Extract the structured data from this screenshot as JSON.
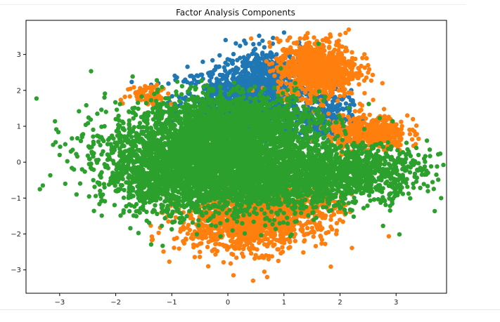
{
  "chart_data": {
    "type": "scatter",
    "title": "Factor Analysis Components",
    "xlabel": "",
    "ylabel": "",
    "xlim": [
      -3.6,
      3.9
    ],
    "ylim": [
      -3.65,
      3.95
    ],
    "xticks": [
      -3,
      -2,
      -1,
      0,
      1,
      2,
      3
    ],
    "yticks": [
      -3,
      -2,
      -1,
      0,
      1,
      2,
      3
    ],
    "xtick_labels": [
      "−3",
      "−2",
      "−1",
      "0",
      "1",
      "2",
      "3"
    ],
    "ytick_labels": [
      "−3",
      "−2",
      "−1",
      "0",
      "1",
      "2",
      "3"
    ],
    "grid": false,
    "legend": "none",
    "series": [
      {
        "color": "#1f77b4",
        "clusters": [
          {
            "cx": 0.2,
            "cy": 1.6,
            "sx": 0.55,
            "sy": 0.55,
            "n": 900
          },
          {
            "cx": 0.7,
            "cy": 2.3,
            "sx": 0.35,
            "sy": 0.45,
            "n": 450
          },
          {
            "cx": 1.7,
            "cy": 1.3,
            "sx": 0.25,
            "sy": 0.35,
            "n": 250
          }
        ],
        "points": [
          [
            -0.6,
            2.3
          ],
          [
            -0.3,
            2.5
          ],
          [
            0.3,
            2.85
          ],
          [
            0.5,
            3.0
          ],
          [
            0.65,
            3.2
          ],
          [
            0.8,
            3.3
          ],
          [
            1.5,
            1.5
          ],
          [
            1.7,
            1.0
          ],
          [
            2.1,
            1.2
          ],
          [
            2.0,
            0.9
          ]
        ]
      },
      {
        "color": "#ff7f0e",
        "clusters": [
          {
            "cx": 1.6,
            "cy": 2.6,
            "sx": 0.35,
            "sy": 0.4,
            "n": 900
          },
          {
            "cx": 2.5,
            "cy": 0.8,
            "sx": 0.35,
            "sy": 0.25,
            "n": 450
          },
          {
            "cx": 0.3,
            "cy": -1.7,
            "sx": 0.6,
            "sy": 0.4,
            "n": 900
          },
          {
            "cx": 1.0,
            "cy": -1.3,
            "sx": 0.5,
            "sy": 0.3,
            "n": 450
          },
          {
            "cx": -1.4,
            "cy": 1.9,
            "sx": 0.2,
            "sy": 0.15,
            "n": 80
          }
        ],
        "points": [
          [
            1.3,
            3.1
          ],
          [
            1.4,
            3.3
          ],
          [
            2.0,
            3.55
          ],
          [
            2.1,
            3.6
          ],
          [
            2.4,
            2.9
          ],
          [
            2.5,
            2.7
          ],
          [
            2.9,
            1.2
          ],
          [
            3.2,
            1.3
          ],
          [
            3.3,
            1.2
          ],
          [
            -0.35,
            -2.9
          ],
          [
            0.1,
            -3.15
          ],
          [
            0.45,
            -3.3
          ],
          [
            0.7,
            -3.2
          ],
          [
            0.65,
            -3.05
          ],
          [
            0.9,
            -2.75
          ],
          [
            -0.8,
            -2.2
          ],
          [
            -0.5,
            -2.5
          ],
          [
            1.4,
            -2.0
          ]
        ]
      },
      {
        "color": "#2ca02c",
        "clusters": [
          {
            "cx": -0.2,
            "cy": 0.3,
            "sx": 0.95,
            "sy": 0.7,
            "n": 2800
          },
          {
            "cx": 0.5,
            "cy": -0.5,
            "sx": 1.0,
            "sy": 0.5,
            "n": 1600
          },
          {
            "cx": 2.3,
            "cy": -0.25,
            "sx": 0.6,
            "sy": 0.35,
            "n": 700
          },
          {
            "cx": -1.2,
            "cy": -0.3,
            "sx": 0.5,
            "sy": 0.6,
            "n": 600
          },
          {
            "cx": 0.2,
            "cy": 1.2,
            "sx": 0.7,
            "sy": 0.35,
            "n": 800
          }
        ],
        "points": [
          [
            -3.3,
            -0.65
          ],
          [
            -3.0,
            0.2
          ],
          [
            -2.9,
            -0.6
          ],
          [
            -2.8,
            0.3
          ],
          [
            -2.7,
            -0.9
          ],
          [
            -2.9,
            0.5
          ],
          [
            -2.6,
            0.7
          ],
          [
            -2.6,
            -0.2
          ],
          [
            -2.4,
            -0.5
          ],
          [
            -2.2,
            1.0
          ],
          [
            -2.0,
            1.2
          ],
          [
            -2.2,
            -0.7
          ],
          [
            -2.0,
            -0.8
          ],
          [
            -1.7,
            1.5
          ],
          [
            3.4,
            0.2
          ],
          [
            3.5,
            0.1
          ],
          [
            3.6,
            0.35
          ],
          [
            3.55,
            0.6
          ],
          [
            3.3,
            0.05
          ]
        ]
      }
    ]
  }
}
